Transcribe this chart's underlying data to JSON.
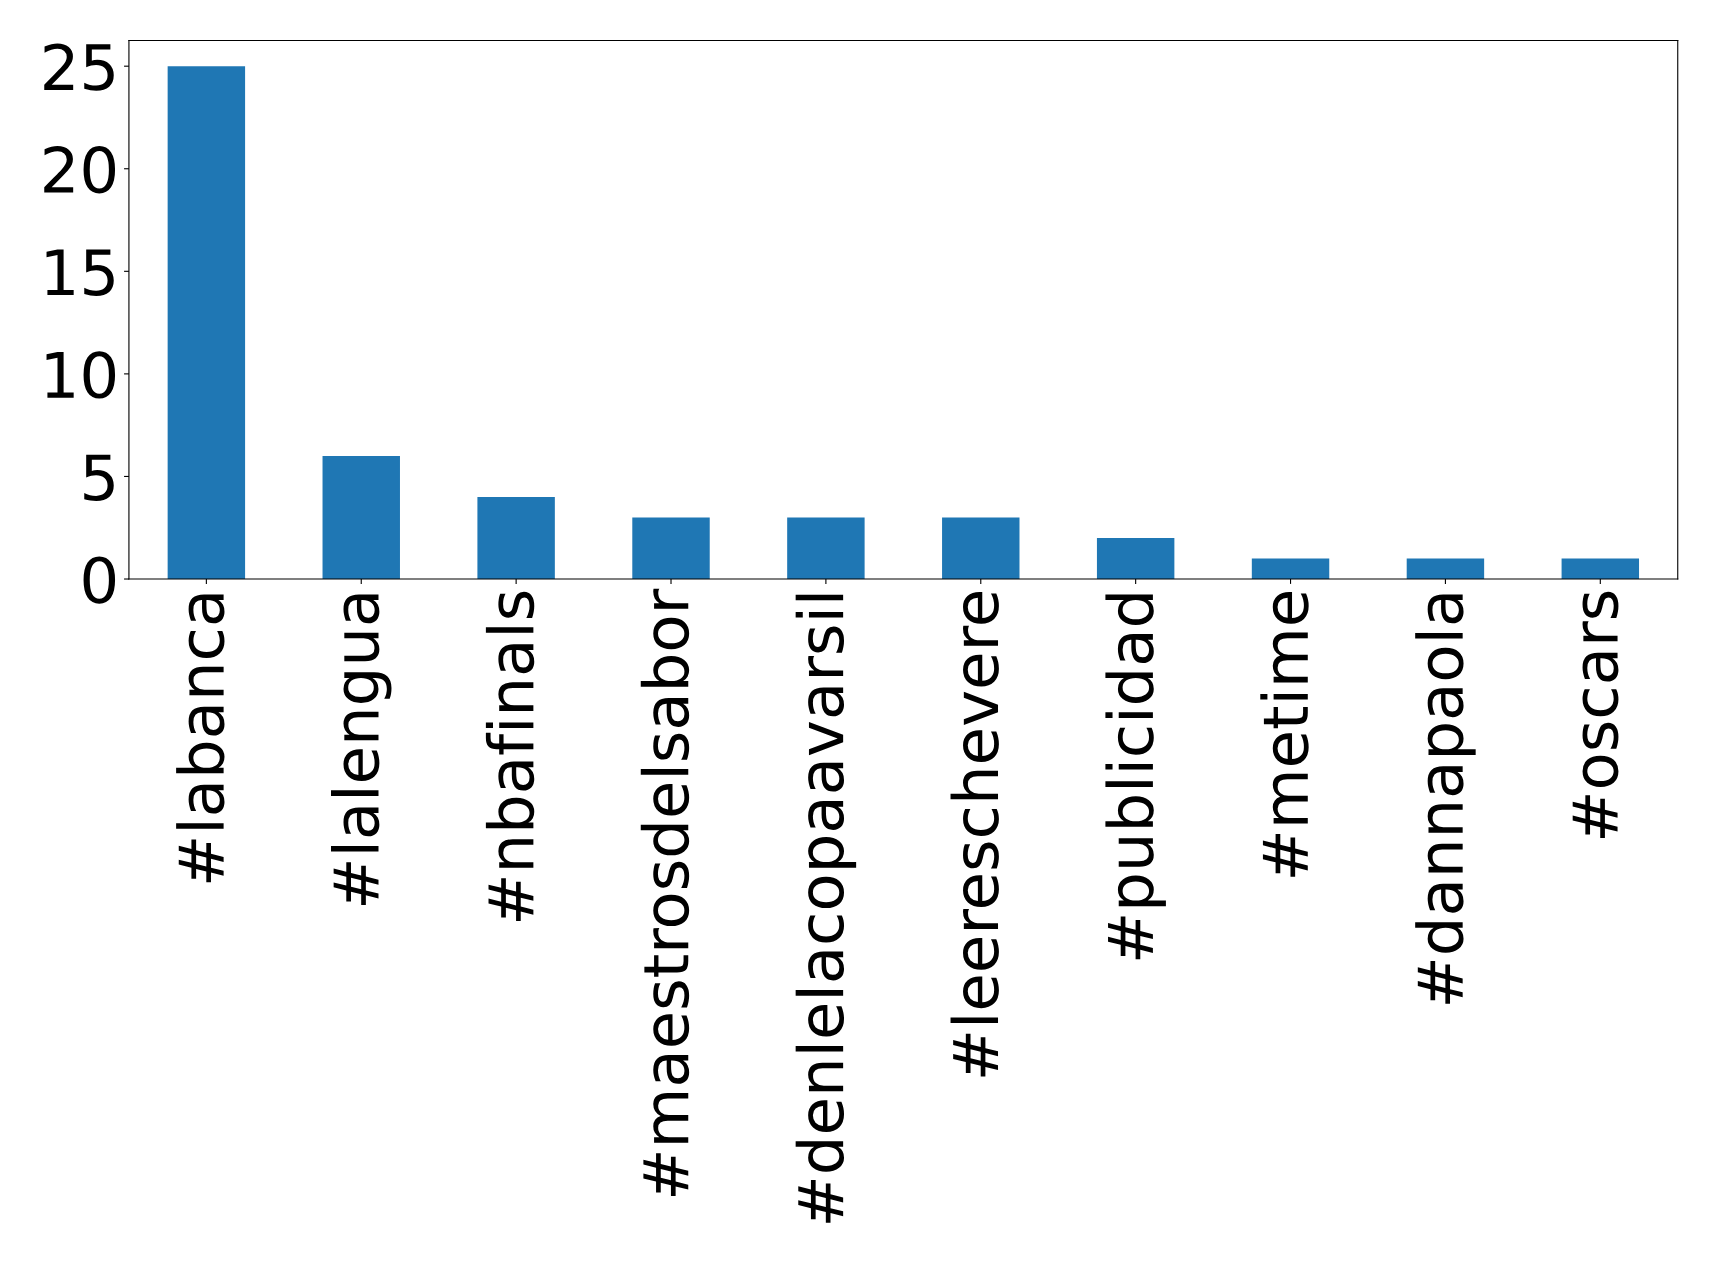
{
  "chart_data": {
    "type": "bar",
    "categories": [
      "#labanca",
      "#lalengua",
      "#nbafinals",
      "#maestrosdelsabor",
      "#denlelacopaavarsil",
      "#leereschevere",
      "#publicidad",
      "#metime",
      "#dannapaola",
      "#oscars"
    ],
    "values": [
      25,
      6,
      4,
      3,
      3,
      3,
      2,
      1,
      1,
      1
    ],
    "color": "#1f77b4",
    "ylim": [
      0,
      26.25
    ],
    "yticks": [
      0,
      5,
      10,
      15,
      20,
      25
    ],
    "grid": false
  }
}
